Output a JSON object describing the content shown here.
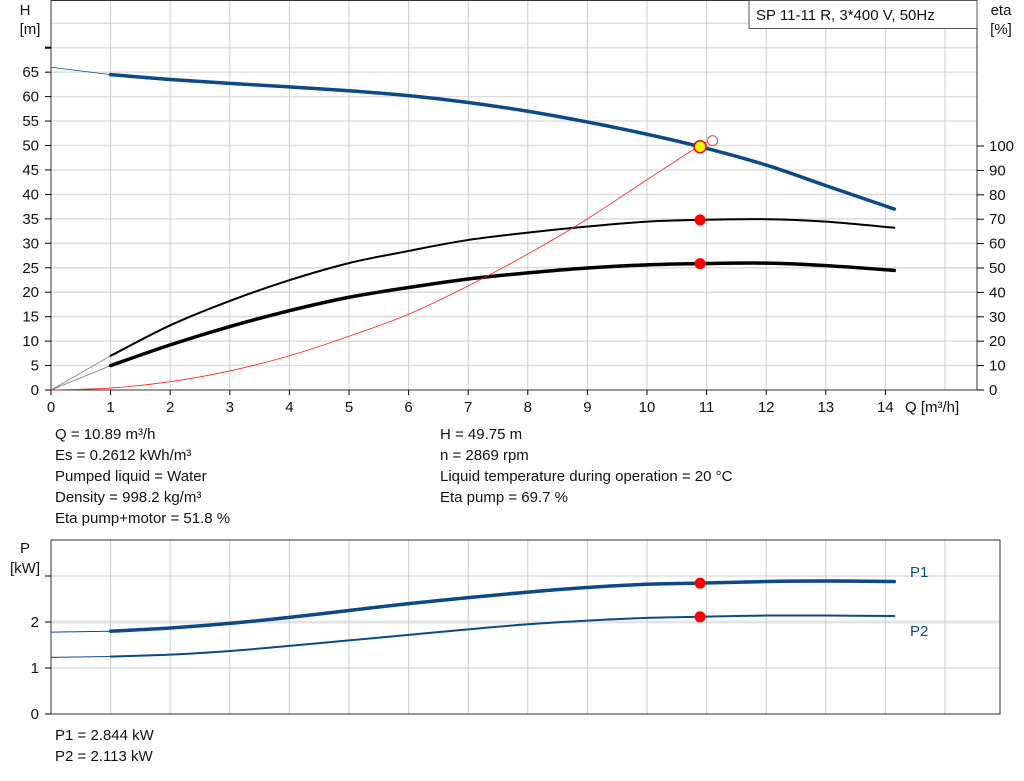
{
  "chart_data": [
    {
      "type": "line",
      "title": "SP 11-11 R, 3*400 V, 50Hz",
      "xlabel": "Q [m³/h]",
      "ylabel_left": [
        "H",
        "[m]"
      ],
      "ylabel_right": [
        "eta",
        "[%]"
      ],
      "xlim": [
        0,
        15.5
      ],
      "ylim_left": [
        0,
        80
      ],
      "ylim_right": [
        0,
        160
      ],
      "x_ticks": [
        0,
        1,
        2,
        3,
        4,
        5,
        6,
        7,
        8,
        9,
        10,
        11,
        12,
        13,
        14
      ],
      "y_ticks_left": [
        0,
        5,
        10,
        15,
        20,
        25,
        30,
        35,
        40,
        45,
        50,
        55,
        60,
        65
      ],
      "y_ticks_right": [
        0,
        10,
        20,
        30,
        40,
        50,
        60,
        70,
        80,
        90,
        100
      ],
      "grid": true,
      "series": [
        {
          "axis": "left",
          "color": "#0b4a86",
          "width": 3.5,
          "x": [
            0,
            1,
            2,
            3,
            4,
            5,
            6,
            7,
            8,
            9,
            10,
            10.89,
            12,
            13,
            14.15
          ],
          "y": [
            66,
            64.5,
            63.5,
            62.7,
            62,
            61.2,
            60.2,
            58.8,
            57,
            54.8,
            52.3,
            49.75,
            46,
            41.8,
            37
          ]
        },
        {
          "axis": "right",
          "color": "#000000",
          "width": 2,
          "x": [
            0,
            1,
            2,
            3,
            4,
            5,
            6,
            7,
            8,
            9,
            10,
            10.89,
            12,
            13,
            14.15
          ],
          "y": [
            0,
            14,
            26.5,
            36.5,
            45,
            52,
            57,
            61.5,
            64.5,
            67,
            69,
            69.7,
            70,
            69,
            66.5
          ]
        },
        {
          "axis": "right",
          "color": "#000000",
          "width": 3.5,
          "x": [
            0,
            1,
            2,
            3,
            4,
            5,
            6,
            7,
            8,
            9,
            10,
            10.89,
            12,
            13,
            14.15
          ],
          "y": [
            0,
            10,
            18.5,
            26,
            32.5,
            38,
            42,
            45.5,
            48,
            50,
            51.3,
            51.8,
            52,
            51,
            49
          ]
        },
        {
          "axis": "left",
          "color": "#ff2020",
          "width": 0.8,
          "x": [
            0,
            1,
            2,
            3,
            4,
            5,
            6,
            7,
            8,
            9,
            10,
            10.89,
            11.1
          ],
          "y": [
            0,
            0.4,
            1.7,
            3.9,
            7,
            11,
            15.5,
            21.3,
            27.8,
            35,
            43,
            50,
            51
          ]
        }
      ],
      "duty_point": {
        "Q": 10.89,
        "H": 49.75,
        "eta_pump": 69.7,
        "eta_pump_motor": 51.8
      }
    },
    {
      "type": "line",
      "ylabel": [
        "P",
        "[kW]"
      ],
      "xlim": [
        0,
        16
      ],
      "ylim": [
        0,
        3.8
      ],
      "y_ticks": [
        0,
        1,
        2
      ],
      "grid": true,
      "series": [
        {
          "name": "P1",
          "color": "#0b4a86",
          "width": 3.5,
          "x": [
            0,
            1,
            2,
            3,
            4,
            5,
            6,
            7,
            8,
            9,
            10,
            10.89,
            12,
            13,
            14.15
          ],
          "y": [
            1.78,
            1.8,
            1.87,
            1.97,
            2.1,
            2.25,
            2.4,
            2.53,
            2.65,
            2.75,
            2.82,
            2.844,
            2.88,
            2.89,
            2.88
          ]
        },
        {
          "name": "P2",
          "color": "#0b4a86",
          "width": 2,
          "x": [
            0,
            1,
            2,
            3,
            4,
            5,
            6,
            7,
            8,
            9,
            10,
            10.89,
            12,
            13,
            14.15
          ],
          "y": [
            1.23,
            1.25,
            1.29,
            1.37,
            1.48,
            1.6,
            1.72,
            1.84,
            1.95,
            2.03,
            2.09,
            2.113,
            2.14,
            2.14,
            2.13
          ]
        }
      ],
      "duty_point": {
        "Q": 10.89,
        "P1": 2.844,
        "P2": 2.113
      }
    }
  ],
  "info": {
    "left": [
      "Q = 10.89 m³/h",
      "Es = 0.2612 kWh/m³",
      "Pumped liquid = Water",
      "Density = 998.2 kg/m³",
      "Eta pump+motor = 51.8 %"
    ],
    "right": [
      "H = 49.75 m",
      "n = 2869 rpm",
      "Liquid temperature during operation = 20 °C",
      "Eta pump = 69.7 %"
    ],
    "power": [
      "P1 = 2.844 kW",
      "P2 = 2.113 kW"
    ]
  }
}
